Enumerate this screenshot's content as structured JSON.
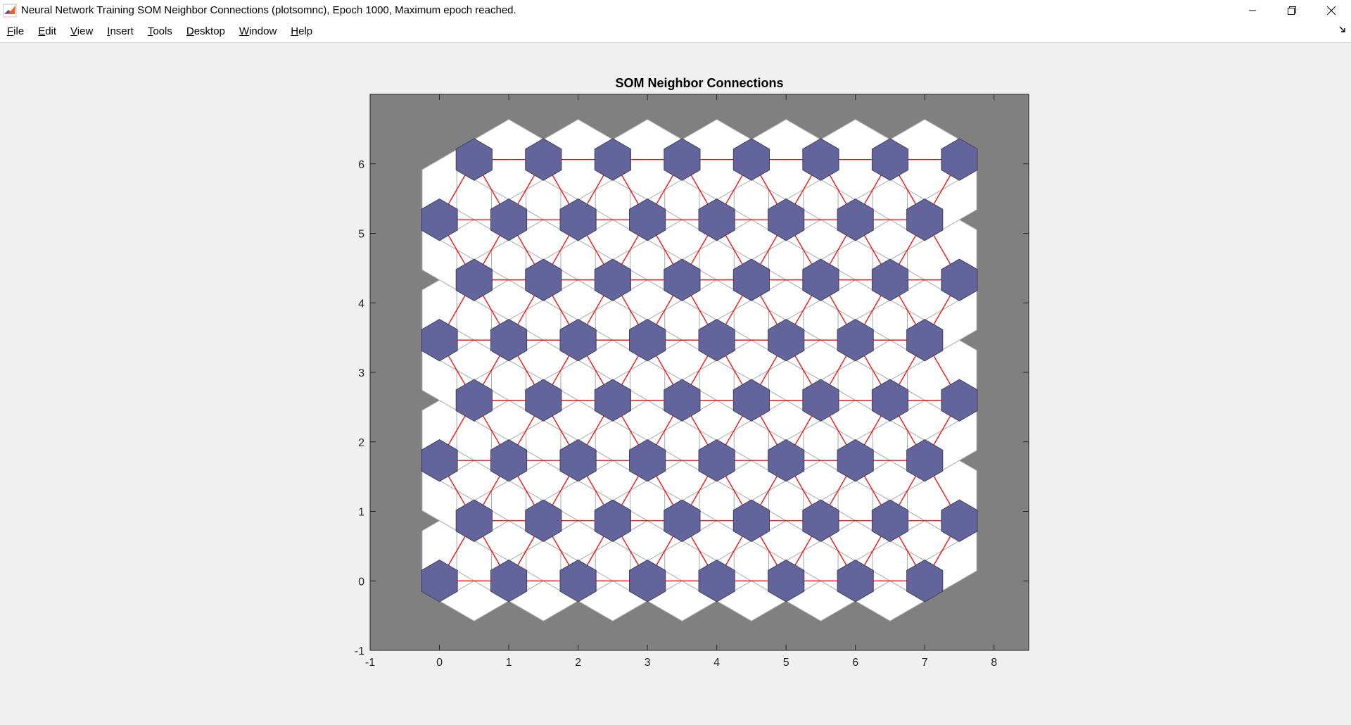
{
  "window": {
    "title": "Neural Network Training SOM Neighbor Connections (plotsomnc), Epoch 1000, Maximum epoch reached.",
    "app_icon": "matlab-icon",
    "controls": [
      "minimize-icon",
      "restore-icon",
      "close-icon"
    ]
  },
  "menu": {
    "items": [
      {
        "label": "File",
        "mnemonic": "F",
        "rest": "ile"
      },
      {
        "label": "Edit",
        "mnemonic": "E",
        "rest": "dit"
      },
      {
        "label": "View",
        "mnemonic": "V",
        "rest": "iew"
      },
      {
        "label": "Insert",
        "mnemonic": "I",
        "rest": "nsert"
      },
      {
        "label": "Tools",
        "mnemonic": "T",
        "rest": "ools"
      },
      {
        "label": "Desktop",
        "mnemonic": "D",
        "rest": "esktop"
      },
      {
        "label": "Window",
        "mnemonic": "W",
        "rest": "indow"
      },
      {
        "label": "Help",
        "mnemonic": "H",
        "rest": "elp"
      }
    ],
    "dock_icon": "dock-arrow-icon"
  },
  "chart_data": {
    "type": "hexagonal-som-topology",
    "title": "SOM Neighbor Connections",
    "xlim": [
      -1,
      8.5
    ],
    "ylim": [
      -1,
      7
    ],
    "xticks": [
      -1,
      0,
      1,
      2,
      3,
      4,
      5,
      6,
      7,
      8
    ],
    "yticks": [
      -1,
      0,
      1,
      2,
      3,
      4,
      5,
      6
    ],
    "grid": false,
    "background_color": "#808080",
    "neuron_color": "#64649c",
    "connection_color": "#ff0000",
    "plot_area_color": "#ffffff",
    "neurons": {
      "columns": 8,
      "rows": 8,
      "x_spacing": 1,
      "odd_row_x_offset": 0.5,
      "y_spacing": 0.866
    }
  },
  "colors": {
    "window_bg": "#f0f0f0",
    "cell_edge": "#aaaaaa",
    "neuron_edge": "#404060"
  }
}
